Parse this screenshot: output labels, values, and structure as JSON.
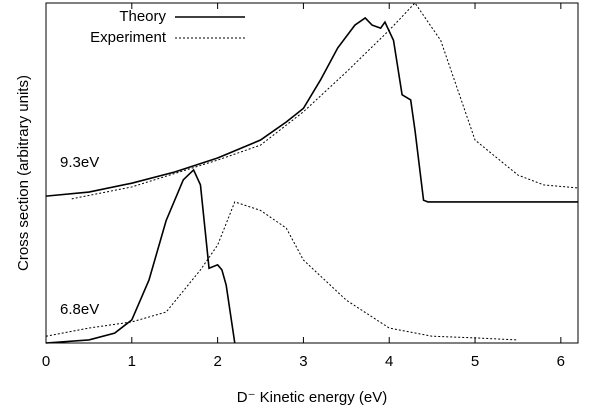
{
  "chart_data": {
    "type": "line",
    "xlabel": "D⁻ Kinetic energy (eV)",
    "ylabel": "Cross section (arbitrary units)",
    "xlim": [
      0,
      6.2
    ],
    "xticks": [
      0,
      1,
      2,
      3,
      4,
      5,
      6
    ],
    "ylim": [
      0,
      100
    ],
    "annotations": [
      "9.3eV",
      "6.8eV"
    ],
    "series": [
      {
        "name": "Theory",
        "color": "#000000",
        "style": "solid",
        "x": [
          0,
          0.5,
          1,
          1.5,
          2,
          2.5,
          2.8,
          3,
          3.2,
          3.4,
          3.6,
          3.72,
          3.8,
          3.9,
          3.95,
          4.05,
          4.15,
          4.25,
          4.3,
          4.4,
          4.45,
          5,
          6.2
        ],
        "values": [
          43.2,
          44.4,
          47,
          50.3,
          54.4,
          59.7,
          65,
          69,
          77.4,
          86.8,
          93.5,
          95.6,
          93.5,
          92.6,
          94.4,
          89,
          73,
          71.5,
          62.6,
          42,
          41.5,
          41.5,
          41.5
        ]
      },
      {
        "name": "Experiment",
        "color": "#000000",
        "style": "dotted",
        "x": [
          0.3,
          1,
          2,
          2.5,
          3,
          3.5,
          4,
          4.3,
          4.6,
          5,
          5.5,
          5.8,
          6.2
        ],
        "values": [
          42.4,
          45.9,
          53.8,
          58.2,
          68,
          79.7,
          92,
          100,
          89,
          59.7,
          49.4,
          46.5,
          45.6
        ]
      },
      {
        "color": "#000000",
        "style": "solid",
        "x": [
          0,
          0.5,
          0.8,
          1,
          1.2,
          1.4,
          1.6,
          1.72,
          1.8,
          1.9,
          2,
          2.05,
          2.1,
          2.2
        ],
        "values": [
          0,
          0.9,
          2.9,
          6.8,
          18.5,
          36,
          48,
          50.9,
          46.5,
          22,
          23,
          21.5,
          17,
          0
        ]
      },
      {
        "color": "#000000",
        "style": "dotted",
        "x": [
          0,
          0.5,
          1,
          1.4,
          1.8,
          2,
          2.2,
          2.5,
          2.8,
          3,
          3.5,
          4,
          4.5,
          5,
          5.5
        ],
        "values": [
          2,
          4.4,
          6.2,
          9.1,
          21.5,
          28.8,
          41.5,
          39,
          33.8,
          24.4,
          12.6,
          4.4,
          2,
          1.5,
          0.9
        ]
      }
    ]
  }
}
